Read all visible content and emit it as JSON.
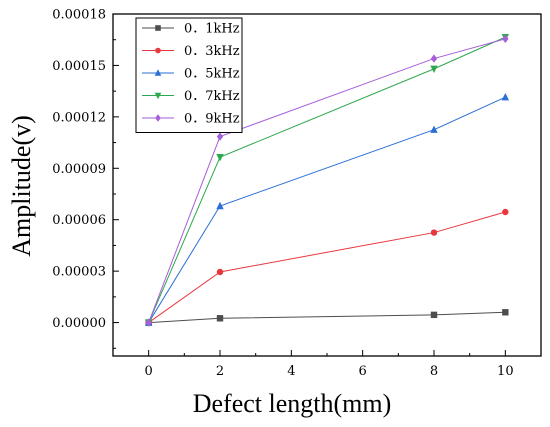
{
  "chart_data": {
    "type": "line",
    "title": "",
    "xlabel": "Defect length(mm)",
    "ylabel": "Amplitude(v)",
    "xlim": [
      -1,
      11
    ],
    "ylim": [
      -1.95e-05,
      0.00018
    ],
    "xticks": [
      0,
      2,
      4,
      6,
      8,
      10
    ],
    "xtick_labels": [
      "0",
      "2",
      "4",
      "6",
      "8",
      "10"
    ],
    "yticks": [
      0,
      3e-05,
      6e-05,
      9e-05,
      0.00012,
      0.00015,
      0.00018
    ],
    "ytick_labels": [
      "0.00000",
      "0.00003",
      "0.00006",
      "0.00009",
      "0.00012",
      "0.00015",
      "0.00018"
    ],
    "grid": false,
    "legend_position": "top-left",
    "x": [
      0,
      2,
      8,
      10
    ],
    "series": [
      {
        "name": "0．1kHz",
        "color": "#4d4d4d",
        "marker": "square",
        "values": [
          0,
          2.5e-06,
          4.5e-06,
          6e-06
        ]
      },
      {
        "name": "0．3kHz",
        "color": "#e8383d",
        "marker": "circle",
        "values": [
          0,
          2.95e-05,
          5.25e-05,
          6.45e-05
        ]
      },
      {
        "name": "0．5kHz",
        "color": "#2a6fd6",
        "marker": "triangle-up",
        "values": [
          0,
          6.8e-05,
          0.0001125,
          0.0001315
        ]
      },
      {
        "name": "0．7kHz",
        "color": "#2ea84e",
        "marker": "triangle-down",
        "values": [
          0,
          9.65e-05,
          0.000148,
          0.0001665
        ]
      },
      {
        "name": "0．9kHz",
        "color": "#a65fd9",
        "marker": "diamond",
        "values": [
          0,
          0.0001085,
          0.000154,
          0.0001655
        ]
      }
    ]
  }
}
